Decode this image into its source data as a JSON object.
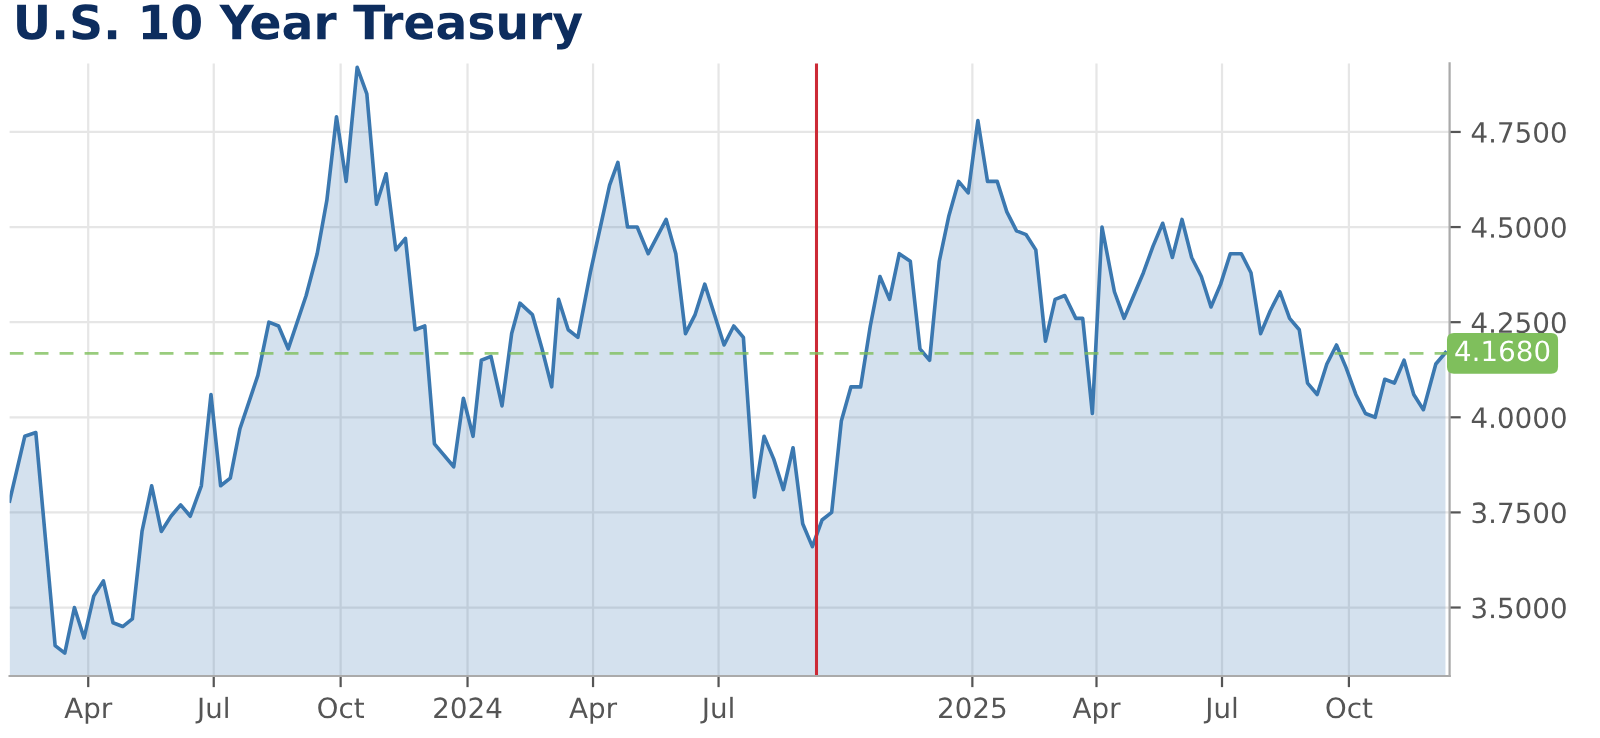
{
  "chart_data": {
    "type": "area",
    "title": "U.S. 10 Year Treasury",
    "x": [
      "2023-02-03",
      "2023-02-14",
      "2023-02-22",
      "2023-03-08",
      "2023-03-15",
      "2023-03-22",
      "2023-03-29",
      "2023-04-05",
      "2023-04-12",
      "2023-04-19",
      "2023-04-26",
      "2023-05-03",
      "2023-05-10",
      "2023-05-17",
      "2023-05-24",
      "2023-05-31",
      "2023-06-07",
      "2023-06-14",
      "2023-06-22",
      "2023-06-29",
      "2023-07-06",
      "2023-07-13",
      "2023-07-20",
      "2023-08-02",
      "2023-08-10",
      "2023-08-17",
      "2023-08-24",
      "2023-09-06",
      "2023-09-14",
      "2023-09-21",
      "2023-09-28",
      "2023-10-05",
      "2023-10-13",
      "2023-10-20",
      "2023-10-27",
      "2023-11-03",
      "2023-11-10",
      "2023-11-17",
      "2023-11-24",
      "2023-12-01",
      "2023-12-08",
      "2023-12-22",
      "2023-12-29",
      "2024-01-05",
      "2024-01-11",
      "2024-01-18",
      "2024-01-26",
      "2024-02-02",
      "2024-02-08",
      "2024-02-17",
      "2024-02-24",
      "2024-03-02",
      "2024-03-07",
      "2024-03-14",
      "2024-03-21",
      "2024-03-30",
      "2024-04-13",
      "2024-04-19",
      "2024-04-26",
      "2024-05-03",
      "2024-05-11",
      "2024-05-24",
      "2024-05-31",
      "2024-06-07",
      "2024-06-14",
      "2024-06-21",
      "2024-06-28",
      "2024-07-05",
      "2024-07-12",
      "2024-07-19",
      "2024-07-27",
      "2024-08-03",
      "2024-08-10",
      "2024-08-17",
      "2024-08-24",
      "2024-08-31",
      "2024-09-07",
      "2024-09-14",
      "2024-09-21",
      "2024-09-28",
      "2024-10-05",
      "2024-10-12",
      "2024-10-19",
      "2024-10-26",
      "2024-11-02",
      "2024-11-09",
      "2024-11-17",
      "2024-11-24",
      "2024-12-01",
      "2024-12-08",
      "2024-12-15",
      "2024-12-22",
      "2024-12-29",
      "2025-01-05",
      "2025-01-12",
      "2025-01-19",
      "2025-01-26",
      "2025-02-02",
      "2025-02-09",
      "2025-02-16",
      "2025-02-23",
      "2025-03-02",
      "2025-03-09",
      "2025-03-17",
      "2025-03-22",
      "2025-03-29",
      "2025-04-05",
      "2025-04-14",
      "2025-04-21",
      "2025-04-28",
      "2025-05-05",
      "2025-05-12",
      "2025-05-19",
      "2025-05-26",
      "2025-06-02",
      "2025-06-09",
      "2025-06-16",
      "2025-06-23",
      "2025-06-30",
      "2025-07-07",
      "2025-07-15",
      "2025-07-22",
      "2025-07-29",
      "2025-08-05",
      "2025-08-12",
      "2025-08-19",
      "2025-08-26",
      "2025-09-01",
      "2025-09-08",
      "2025-09-15",
      "2025-09-22",
      "2025-09-29",
      "2025-10-06",
      "2025-10-13",
      "2025-10-20",
      "2025-10-27",
      "2025-11-03",
      "2025-11-10",
      "2025-11-17",
      "2025-11-24",
      "2025-12-03",
      "2025-12-10"
    ],
    "series": [
      {
        "color": "#3b78b0",
        "values": [
          3.78,
          3.95,
          3.96,
          3.4,
          3.38,
          3.5,
          3.42,
          3.53,
          3.57,
          3.46,
          3.45,
          3.47,
          3.7,
          3.82,
          3.7,
          3.74,
          3.77,
          3.74,
          3.82,
          4.06,
          3.82,
          3.84,
          3.97,
          4.11,
          4.25,
          4.24,
          4.18,
          4.32,
          4.43,
          4.57,
          4.79,
          4.62,
          4.92,
          4.85,
          4.56,
          4.64,
          4.44,
          4.47,
          4.23,
          4.24,
          3.93,
          3.87,
          4.05,
          3.95,
          4.15,
          4.16,
          4.03,
          4.22,
          4.3,
          4.27,
          4.18,
          4.08,
          4.31,
          4.23,
          4.21,
          4.38,
          4.61,
          4.67,
          4.5,
          4.5,
          4.43,
          4.52,
          4.43,
          4.22,
          4.27,
          4.35,
          4.27,
          4.19,
          4.24,
          4.21,
          3.79,
          3.95,
          3.89,
          3.81,
          3.92,
          3.72,
          3.66,
          3.73,
          3.75,
          3.99,
          4.08,
          4.08,
          4.24,
          4.37,
          4.31,
          4.43,
          4.41,
          4.18,
          4.15,
          4.41,
          4.53,
          4.62,
          4.59,
          4.78,
          4.62,
          4.62,
          4.54,
          4.49,
          4.48,
          4.44,
          4.2,
          4.31,
          4.32,
          4.26,
          4.26,
          4.01,
          4.5,
          4.33,
          4.26,
          4.32,
          4.38,
          4.45,
          4.51,
          4.42,
          4.52,
          4.42,
          4.37,
          4.29,
          4.35,
          4.43,
          4.43,
          4.38,
          4.22,
          4.28,
          4.33,
          4.26,
          4.23,
          4.09,
          4.06,
          4.14,
          4.19,
          4.13,
          4.06,
          4.01,
          4.0,
          4.1,
          4.09,
          4.15,
          4.06,
          4.02,
          4.14,
          4.17
        ]
      }
    ],
    "xlim": [
      "2023-02-03",
      "2025-12-13"
    ],
    "xticks": [
      {
        "value": "2023-04-01",
        "label": "Apr"
      },
      {
        "value": "2023-07-01",
        "label": "Jul"
      },
      {
        "value": "2023-10-01",
        "label": "Oct"
      },
      {
        "value": "2024-01-01",
        "label": "2024"
      },
      {
        "value": "2024-04-01",
        "label": "Apr"
      },
      {
        "value": "2024-07-01",
        "label": "Jul"
      },
      {
        "value": "2025-01-01",
        "label": "2025"
      },
      {
        "value": "2025-04-01",
        "label": "Apr"
      },
      {
        "value": "2025-07-01",
        "label": "Jul"
      },
      {
        "value": "2025-10-01",
        "label": "Oct"
      }
    ],
    "ylim": [
      3.32,
      4.93
    ],
    "yticks": [
      {
        "value": 3.5,
        "label": "3.5000"
      },
      {
        "value": 3.75,
        "label": "3.7500"
      },
      {
        "value": 4.0,
        "label": "4.0000"
      },
      {
        "value": 4.25,
        "label": "4.2500"
      },
      {
        "value": 4.5,
        "label": "4.5000"
      },
      {
        "value": 4.75,
        "label": "4.7500"
      }
    ],
    "ref_lines": [
      {
        "axis": "x",
        "value": "2024-09-10",
        "color": "#cc2a36",
        "line_style": "solid"
      },
      {
        "axis": "y",
        "value": 4.168,
        "label": "4.1680",
        "color": "#7fbf5c",
        "line_style": "dashed"
      }
    ],
    "grid": true,
    "legend": false,
    "marker": "none"
  }
}
